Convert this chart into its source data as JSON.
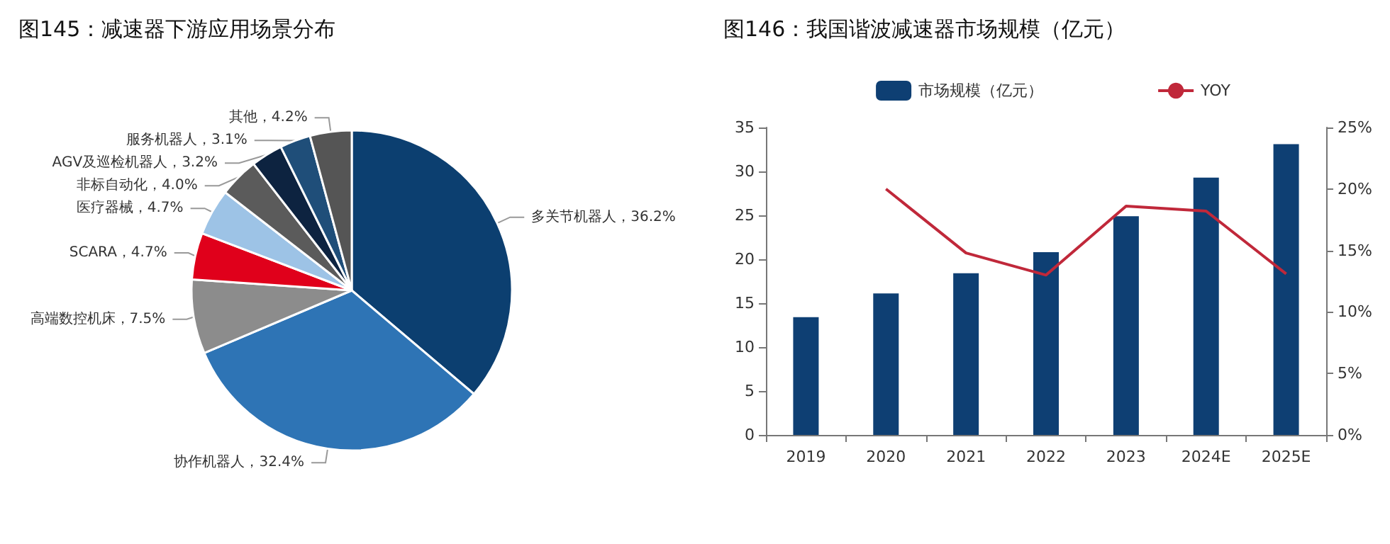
{
  "chart_data": [
    {
      "type": "pie",
      "title": "图145：减速器下游应用场景分布",
      "categories": [
        "多关节机器人",
        "协作机器人",
        "高端数控机床",
        "SCARA",
        "医疗器械",
        "非标自动化",
        "AGV及巡检机器人",
        "服务机器人",
        "其他"
      ],
      "values": [
        36.2,
        32.4,
        7.5,
        4.7,
        4.7,
        4.0,
        3.2,
        3.1,
        4.2
      ],
      "value_labels": [
        "36.2%",
        "32.4%",
        "7.5%",
        "4.7%",
        "4.7%",
        "4.0%",
        "3.2%",
        "3.1%",
        "4.2%"
      ],
      "colors": [
        "#0c3f70",
        "#2e74b5",
        "#8c8c8c",
        "#e0001b",
        "#9dc3e6",
        "#5b5b5b",
        "#0d2340",
        "#1f4e79",
        "#555555"
      ],
      "legend": false
    },
    {
      "type": "bar",
      "title": "图146：我国谐波减速器市场规模（亿元）",
      "categories": [
        "2019",
        "2020",
        "2021",
        "2022",
        "2023",
        "2024E",
        "2025E"
      ],
      "series": [
        {
          "name": "市场规模（亿元）",
          "type": "bar",
          "color": "#0e3f73",
          "values": [
            13.4,
            16.1,
            18.4,
            20.8,
            24.9,
            29.3,
            33.1
          ]
        },
        {
          "name": "YOY",
          "type": "line",
          "axis": "y2",
          "color": "#c0283a",
          "values": [
            null,
            20.0,
            14.8,
            13.0,
            18.6,
            18.2,
            13.1
          ]
        }
      ],
      "ylim": [
        0,
        35
      ],
      "yticks": [
        0,
        5,
        10,
        15,
        20,
        25,
        30,
        35
      ],
      "y2lim": [
        0,
        25
      ],
      "y2ticks": [
        {
          "value": 0,
          "label": "0%"
        },
        {
          "value": 5,
          "label": "5%"
        },
        {
          "value": 10,
          "label": "10%"
        },
        {
          "value": 15,
          "label": "15%"
        },
        {
          "value": 20,
          "label": "20%"
        },
        {
          "value": 25,
          "label": "25%"
        }
      ],
      "grid": false,
      "legend": "top",
      "marker": "none"
    }
  ]
}
